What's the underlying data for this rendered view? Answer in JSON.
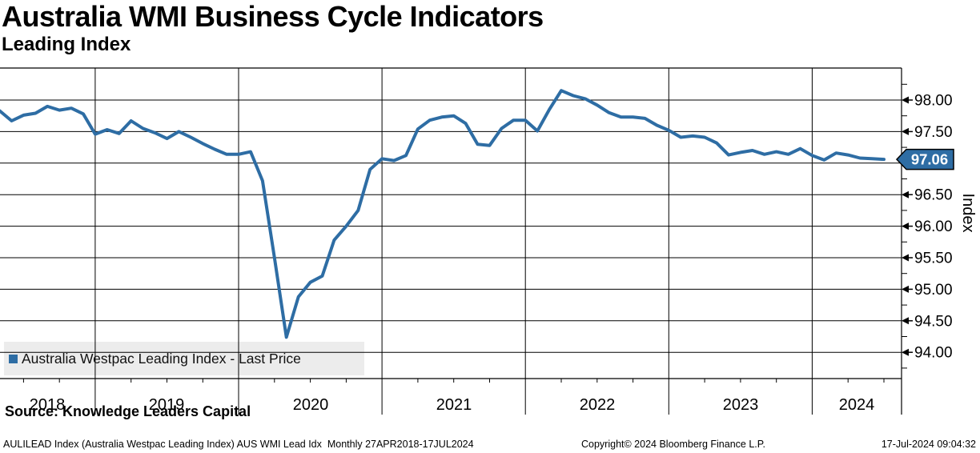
{
  "header": {
    "title": "Australia WMI Business Cycle Indicators",
    "subtitle": "Leading Index"
  },
  "legend": {
    "label": "Australia Westpac Leading Index - Last Price",
    "swatch_color": "#2e6da4"
  },
  "footer": {
    "source": "Source: Knowledge Leaders Capital",
    "description": "AULILEAD Index (Australia Westpac Leading Index) AUS WMI Lead Idx  Monthly 27APR2018-17JUL2024",
    "copyright": "Copyright© 2024 Bloomberg Finance L.P.",
    "timestamp": "17-Jul-2024 09:04:32"
  },
  "chart_data": {
    "type": "line",
    "title": "Australia WMI Business Cycle Indicators",
    "subtitle": "Leading Index",
    "ylabel": "Index",
    "frequency": "Monthly",
    "date_range": "27APR2018-17JUL2024",
    "grid": true,
    "line_color": "#2e6da4",
    "last_price": 97.06,
    "last_price_label": "97.06",
    "y_axis": {
      "side": "right",
      "major_step": 0.5,
      "minor_step": 0.25,
      "shown_min": 94.0,
      "shown_max": 98.0,
      "tick_labels": [
        "98.00",
        "97.50",
        "97.00",
        "96.50",
        "96.00",
        "95.50",
        "95.00",
        "94.50",
        "94.00"
      ]
    },
    "x_axis": {
      "year_labels": [
        "2018",
        "2019",
        "2020",
        "2021",
        "2022",
        "2023",
        "2024"
      ]
    },
    "series": [
      {
        "name": "Australia Westpac Leading Index - Last Price",
        "color": "#2e6da4",
        "start": "2018-04",
        "end": "2024-07",
        "values": [
          97.92,
          97.83,
          97.67,
          97.76,
          97.79,
          97.9,
          97.84,
          97.87,
          97.78,
          97.46,
          97.53,
          97.47,
          97.67,
          97.55,
          97.48,
          97.39,
          97.5,
          97.41,
          97.31,
          97.22,
          97.14,
          97.14,
          97.18,
          96.72,
          95.5,
          94.24,
          94.88,
          95.11,
          95.21,
          95.78,
          96.0,
          96.25,
          96.9,
          97.07,
          97.04,
          97.12,
          97.54,
          97.68,
          97.73,
          97.75,
          97.63,
          97.3,
          97.28,
          97.55,
          97.68,
          97.68,
          97.51,
          97.85,
          98.15,
          98.07,
          98.02,
          97.92,
          97.8,
          97.73,
          97.73,
          97.71,
          97.6,
          97.52,
          97.41,
          97.43,
          97.41,
          97.32,
          97.13,
          97.17,
          97.2,
          97.14,
          97.18,
          97.14,
          97.23,
          97.12,
          97.05,
          97.16,
          97.13,
          97.08,
          97.07,
          97.06
        ]
      }
    ]
  }
}
